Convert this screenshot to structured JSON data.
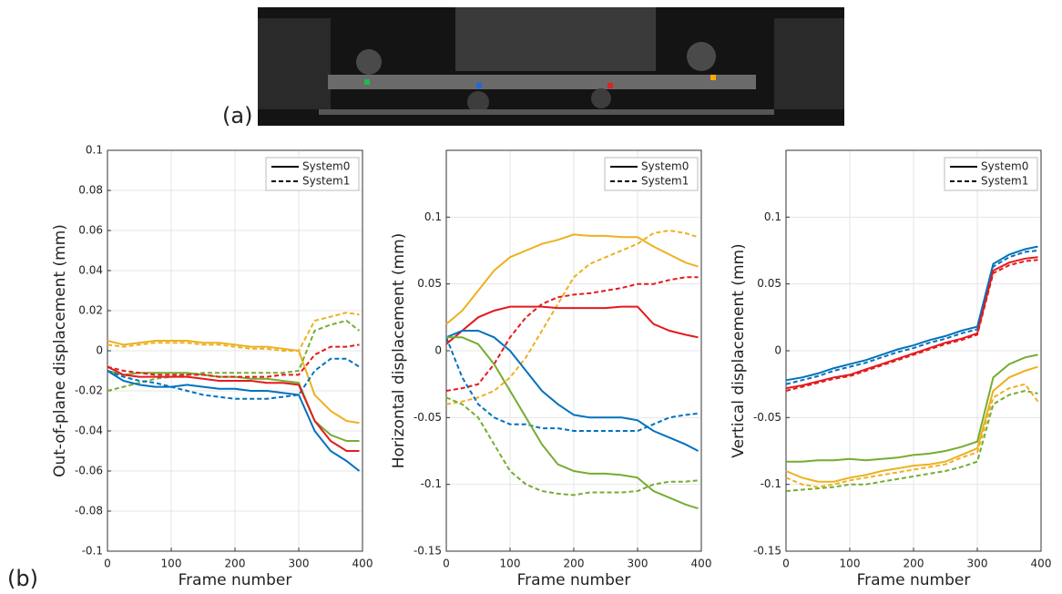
{
  "panel_labels": [
    "(a)",
    "(b)"
  ],
  "chart_data": [
    {
      "type": "line",
      "ylabel": "Out-of-plane displacement (mm)",
      "xlabel": "Frame number",
      "x": [
        0,
        25,
        50,
        75,
        100,
        125,
        150,
        175,
        200,
        225,
        250,
        275,
        300,
        325,
        350,
        375,
        395
      ],
      "xlim": [
        0,
        400
      ],
      "xticks": [
        0,
        100,
        200,
        300,
        400
      ],
      "ylim": [
        -0.1,
        0.1
      ],
      "yticks": [
        -0.1,
        -0.08,
        -0.06,
        -0.04,
        -0.02,
        0,
        0.02,
        0.04,
        0.06,
        0.08,
        0.1
      ],
      "grid": true,
      "legend_loc": "northeast",
      "legend": [
        {
          "name": "System0",
          "dash": "solid"
        },
        {
          "name": "System1",
          "dash": "dashed"
        }
      ],
      "series": [
        {
          "color": "#edb120",
          "dash": "solid",
          "values": [
            0.005,
            0.003,
            0.004,
            0.005,
            0.005,
            0.005,
            0.004,
            0.004,
            0.003,
            0.002,
            0.002,
            0.001,
            0,
            -0.022,
            -0.03,
            -0.035,
            -0.036
          ]
        },
        {
          "color": "#edb120",
          "dash": "dashed",
          "values": [
            0.003,
            0.002,
            0.003,
            0.004,
            0.004,
            0.004,
            0.003,
            0.003,
            0.002,
            0.001,
            0.001,
            0,
            0,
            0.015,
            0.017,
            0.019,
            0.018
          ]
        },
        {
          "color": "#77ac30",
          "dash": "solid",
          "values": [
            -0.01,
            -0.012,
            -0.011,
            -0.011,
            -0.011,
            -0.011,
            -0.012,
            -0.013,
            -0.013,
            -0.014,
            -0.014,
            -0.015,
            -0.016,
            -0.035,
            -0.042,
            -0.045,
            -0.045
          ]
        },
        {
          "color": "#77ac30",
          "dash": "dashed",
          "values": [
            -0.02,
            -0.018,
            -0.016,
            -0.014,
            -0.013,
            -0.012,
            -0.011,
            -0.011,
            -0.011,
            -0.011,
            -0.011,
            -0.011,
            -0.01,
            0.01,
            0.013,
            0.015,
            0.01
          ]
        },
        {
          "color": "#0072bd",
          "dash": "solid",
          "values": [
            -0.01,
            -0.015,
            -0.017,
            -0.018,
            -0.018,
            -0.017,
            -0.018,
            -0.019,
            -0.019,
            -0.02,
            -0.02,
            -0.021,
            -0.022,
            -0.04,
            -0.05,
            -0.055,
            -0.06
          ]
        },
        {
          "color": "#0072bd",
          "dash": "dashed",
          "values": [
            -0.01,
            -0.013,
            -0.015,
            -0.016,
            -0.018,
            -0.02,
            -0.022,
            -0.023,
            -0.024,
            -0.024,
            -0.024,
            -0.023,
            -0.022,
            -0.01,
            -0.004,
            -0.004,
            -0.008
          ]
        },
        {
          "color": "#e41a1c",
          "dash": "solid",
          "values": [
            -0.008,
            -0.012,
            -0.013,
            -0.013,
            -0.013,
            -0.013,
            -0.014,
            -0.015,
            -0.015,
            -0.015,
            -0.016,
            -0.016,
            -0.017,
            -0.035,
            -0.045,
            -0.05,
            -0.05
          ]
        },
        {
          "color": "#e41a1c",
          "dash": "dashed",
          "values": [
            -0.008,
            -0.01,
            -0.011,
            -0.012,
            -0.012,
            -0.012,
            -0.012,
            -0.013,
            -0.013,
            -0.013,
            -0.013,
            -0.012,
            -0.012,
            -0.002,
            0.002,
            0.002,
            0.003
          ]
        }
      ]
    },
    {
      "type": "line",
      "ylabel": "Horizontal displacement (mm)",
      "xlabel": "Frame number",
      "x": [
        0,
        25,
        50,
        75,
        100,
        125,
        150,
        175,
        200,
        225,
        250,
        275,
        300,
        325,
        350,
        375,
        395
      ],
      "xlim": [
        0,
        400
      ],
      "xticks": [
        0,
        100,
        200,
        300,
        400
      ],
      "ylim": [
        -0.15,
        0.15
      ],
      "yticks": [
        -0.15,
        -0.1,
        -0.05,
        0,
        0.05,
        0.1
      ],
      "grid": true,
      "legend_loc": "northeast",
      "legend": [
        {
          "name": "System0",
          "dash": "solid"
        },
        {
          "name": "System1",
          "dash": "dashed"
        }
      ],
      "series": [
        {
          "color": "#edb120",
          "dash": "solid",
          "values": [
            0.02,
            0.03,
            0.045,
            0.06,
            0.07,
            0.075,
            0.08,
            0.083,
            0.087,
            0.086,
            0.086,
            0.085,
            0.085,
            0.078,
            0.072,
            0.066,
            0.063
          ]
        },
        {
          "color": "#edb120",
          "dash": "dashed",
          "values": [
            -0.04,
            -0.038,
            -0.035,
            -0.03,
            -0.02,
            -0.005,
            0.015,
            0.035,
            0.055,
            0.065,
            0.07,
            0.075,
            0.08,
            0.088,
            0.09,
            0.088,
            0.085
          ]
        },
        {
          "color": "#e41a1c",
          "dash": "solid",
          "values": [
            0.005,
            0.015,
            0.025,
            0.03,
            0.033,
            0.033,
            0.033,
            0.032,
            0.032,
            0.032,
            0.032,
            0.033,
            0.033,
            0.02,
            0.015,
            0.012,
            0.01
          ]
        },
        {
          "color": "#e41a1c",
          "dash": "dashed",
          "values": [
            -0.03,
            -0.028,
            -0.025,
            -0.01,
            0.01,
            0.025,
            0.035,
            0.04,
            0.042,
            0.043,
            0.045,
            0.047,
            0.05,
            0.05,
            0.053,
            0.055,
            0.055
          ]
        },
        {
          "color": "#0072bd",
          "dash": "solid",
          "values": [
            0.01,
            0.015,
            0.015,
            0.01,
            0,
            -0.015,
            -0.03,
            -0.04,
            -0.048,
            -0.05,
            -0.05,
            -0.05,
            -0.052,
            -0.06,
            -0.065,
            -0.07,
            -0.075
          ]
        },
        {
          "color": "#0072bd",
          "dash": "dashed",
          "values": [
            0.01,
            -0.02,
            -0.04,
            -0.05,
            -0.055,
            -0.055,
            -0.058,
            -0.058,
            -0.06,
            -0.06,
            -0.06,
            -0.06,
            -0.06,
            -0.055,
            -0.05,
            -0.048,
            -0.047
          ]
        },
        {
          "color": "#77ac30",
          "dash": "solid",
          "values": [
            0.01,
            0.01,
            0.005,
            -0.01,
            -0.03,
            -0.05,
            -0.07,
            -0.085,
            -0.09,
            -0.092,
            -0.092,
            -0.093,
            -0.095,
            -0.105,
            -0.11,
            -0.115,
            -0.118
          ]
        },
        {
          "color": "#77ac30",
          "dash": "dashed",
          "values": [
            -0.035,
            -0.04,
            -0.05,
            -0.07,
            -0.09,
            -0.1,
            -0.105,
            -0.107,
            -0.108,
            -0.106,
            -0.106,
            -0.106,
            -0.105,
            -0.1,
            -0.098,
            -0.098,
            -0.097
          ]
        }
      ]
    },
    {
      "type": "line",
      "ylabel": "Vertical displacement (mm)",
      "xlabel": "Frame number",
      "x": [
        0,
        25,
        50,
        75,
        100,
        125,
        150,
        175,
        200,
        225,
        250,
        275,
        300,
        325,
        350,
        375,
        395
      ],
      "xlim": [
        0,
        400
      ],
      "xticks": [
        0,
        100,
        200,
        300,
        400
      ],
      "ylim": [
        -0.15,
        0.15
      ],
      "yticks": [
        -0.15,
        -0.1,
        -0.05,
        0,
        0.05,
        0.1
      ],
      "grid": true,
      "legend_loc": "northeast",
      "legend": [
        {
          "name": "System0",
          "dash": "solid"
        },
        {
          "name": "System1",
          "dash": "dashed"
        }
      ],
      "series": [
        {
          "color": "#0072bd",
          "dash": "solid",
          "values": [
            -0.022,
            -0.02,
            -0.017,
            -0.013,
            -0.01,
            -0.007,
            -0.003,
            0.001,
            0.004,
            0.008,
            0.011,
            0.015,
            0.018,
            0.065,
            0.072,
            0.076,
            0.078
          ]
        },
        {
          "color": "#0072bd",
          "dash": "dashed",
          "values": [
            -0.025,
            -0.022,
            -0.019,
            -0.015,
            -0.012,
            -0.009,
            -0.005,
            -0.001,
            0.002,
            0.006,
            0.009,
            0.013,
            0.016,
            0.063,
            0.07,
            0.074,
            0.075
          ]
        },
        {
          "color": "#e41a1c",
          "dash": "solid",
          "values": [
            -0.028,
            -0.026,
            -0.023,
            -0.02,
            -0.018,
            -0.014,
            -0.01,
            -0.006,
            -0.002,
            0.002,
            0.006,
            0.009,
            0.013,
            0.06,
            0.066,
            0.069,
            0.07
          ]
        },
        {
          "color": "#e41a1c",
          "dash": "dashed",
          "values": [
            -0.03,
            -0.027,
            -0.024,
            -0.021,
            -0.019,
            -0.015,
            -0.011,
            -0.007,
            -0.003,
            0.001,
            0.005,
            0.008,
            0.012,
            0.058,
            0.064,
            0.067,
            0.068
          ]
        },
        {
          "color": "#77ac30",
          "dash": "solid",
          "values": [
            -0.083,
            -0.083,
            -0.082,
            -0.082,
            -0.081,
            -0.082,
            -0.081,
            -0.08,
            -0.078,
            -0.077,
            -0.075,
            -0.072,
            -0.068,
            -0.02,
            -0.01,
            -0.005,
            -0.003
          ]
        },
        {
          "color": "#77ac30",
          "dash": "dashed",
          "values": [
            -0.105,
            -0.104,
            -0.103,
            -0.102,
            -0.1,
            -0.1,
            -0.098,
            -0.096,
            -0.094,
            -0.092,
            -0.09,
            -0.087,
            -0.083,
            -0.04,
            -0.033,
            -0.03,
            -0.032
          ]
        },
        {
          "color": "#edb120",
          "dash": "solid",
          "values": [
            -0.09,
            -0.095,
            -0.098,
            -0.098,
            -0.095,
            -0.093,
            -0.09,
            -0.088,
            -0.086,
            -0.085,
            -0.083,
            -0.078,
            -0.073,
            -0.03,
            -0.02,
            -0.015,
            -0.012
          ]
        },
        {
          "color": "#edb120",
          "dash": "dashed",
          "values": [
            -0.095,
            -0.1,
            -0.102,
            -0.1,
            -0.097,
            -0.095,
            -0.093,
            -0.091,
            -0.089,
            -0.087,
            -0.085,
            -0.08,
            -0.076,
            -0.035,
            -0.028,
            -0.025,
            -0.038
          ]
        }
      ]
    }
  ]
}
